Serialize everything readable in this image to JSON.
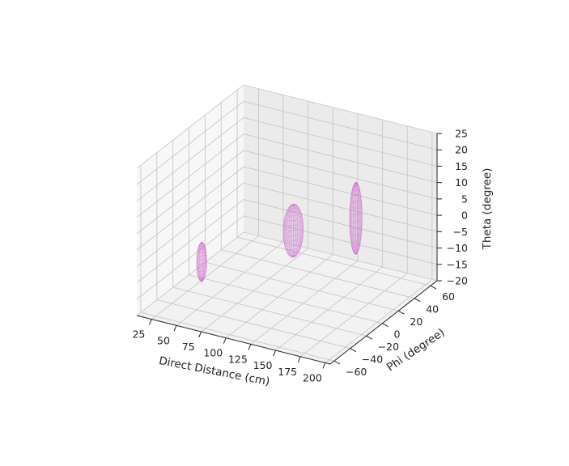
{
  "chart_data": {
    "type": "3d-surface",
    "title": "",
    "xlabel": "Direct Distance (cm)",
    "ylabel": "Phi (degree)",
    "zlabel": "Theta (degree)",
    "xticks": [
      "25",
      "50",
      "75",
      "100",
      "125",
      "150",
      "175",
      "200"
    ],
    "yticks": [
      "−60",
      "−40",
      "−20",
      "0",
      "20",
      "40",
      "60"
    ],
    "zticks": [
      "−20",
      "−15",
      "−10",
      "−5",
      "0",
      "5",
      "10",
      "15",
      "20",
      "25"
    ],
    "xlim": [
      10,
      205
    ],
    "ylim": [
      -65,
      68
    ],
    "zlim": [
      -20,
      25
    ],
    "grid": true,
    "color": "#cc66cc",
    "ellipsoids": [
      {
        "center": [
          39,
          -20,
          -10
        ],
        "radii": [
          4,
          4,
          6
        ]
      },
      {
        "center": [
          120,
          -6,
          3
        ],
        "radii": [
          8,
          8,
          8
        ]
      },
      {
        "center": [
          162,
          20,
          5
        ],
        "radii": [
          5,
          5,
          11
        ]
      }
    ]
  }
}
